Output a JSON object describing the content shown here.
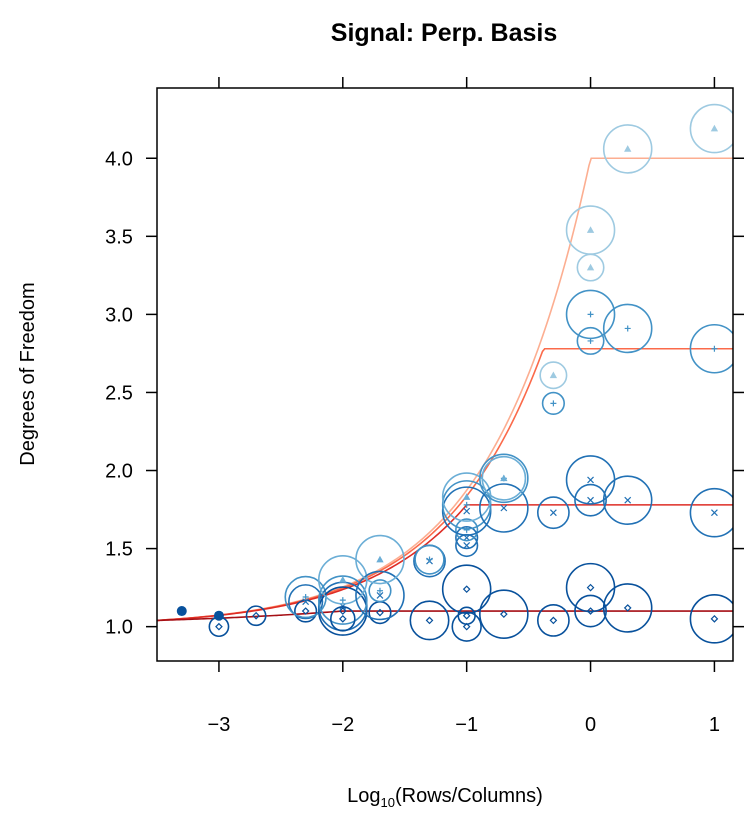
{
  "chart_data": {
    "type": "scatter",
    "title": "Signal: Perp. Basis",
    "xlabel_prefix": "Log",
    "xlabel_subscript": "10",
    "xlabel_suffix": "(Rows/Columns)",
    "ylabel": "Degrees of Freedom",
    "xlim": [
      -3.5,
      1.15
    ],
    "ylim": [
      0.78,
      4.45
    ],
    "x_ticks": [
      -3,
      -2,
      -1,
      0,
      1
    ],
    "x_tick_labels": [
      "−3",
      "−2",
      "−1",
      "0",
      "1"
    ],
    "y_ticks": [
      1.0,
      1.5,
      2.0,
      2.5,
      3.0,
      3.5,
      4.0
    ],
    "y_tick_labels": [
      "1.0",
      "1.5",
      "2.0",
      "2.5",
      "3.0",
      "3.5",
      "4.0"
    ],
    "grid": false,
    "legend": "none",
    "curves": [
      {
        "color": "#fcae91",
        "level": 4.0,
        "knee": 0.0
      },
      {
        "color": "#fb6a4a",
        "level": 2.78,
        "knee": -0.38
      },
      {
        "color": "#de2d26",
        "level": 1.78,
        "knee": -1.0
      },
      {
        "color": "#a50f15",
        "level": 1.1,
        "knee": -2.0
      }
    ],
    "points": [
      {
        "x": -3.3,
        "y": 1.1,
        "symbol": "dot",
        "size": 0,
        "color": "#08519c"
      },
      {
        "x": -3.0,
        "y": 1.07,
        "symbol": "dot",
        "size": 0,
        "color": "#08519c"
      },
      {
        "x": -3.0,
        "y": 1.0,
        "symbol": "diamond",
        "size": 0.4,
        "color": "#08519c"
      },
      {
        "x": -2.7,
        "y": 1.07,
        "symbol": "diamond",
        "size": 0.4,
        "color": "#08519c"
      },
      {
        "x": -2.3,
        "y": 1.1,
        "symbol": "diamond",
        "size": 0.45,
        "color": "#08519c"
      },
      {
        "x": -2.3,
        "y": 1.16,
        "symbol": "x",
        "size": 0.7,
        "color": "#2171b5"
      },
      {
        "x": -2.3,
        "y": 1.19,
        "symbol": "plus",
        "size": 0.85,
        "color": "#4292c6"
      },
      {
        "x": -2.0,
        "y": 1.1,
        "symbol": "diamond",
        "size": 1.0,
        "color": "#08519c"
      },
      {
        "x": -2.0,
        "y": 1.13,
        "symbol": "x",
        "size": 1.0,
        "color": "#2171b5"
      },
      {
        "x": -2.0,
        "y": 1.17,
        "symbol": "plus",
        "size": 1.0,
        "color": "#4292c6"
      },
      {
        "x": -2.0,
        "y": 1.3,
        "symbol": "triangle",
        "size": 1.0,
        "color": "#6baed6"
      },
      {
        "x": -2.0,
        "y": 1.05,
        "symbol": "diamond",
        "size": 0.5,
        "color": "#08519c"
      },
      {
        "x": -1.7,
        "y": 1.09,
        "symbol": "diamond",
        "size": 0.45,
        "color": "#08519c"
      },
      {
        "x": -1.7,
        "y": 1.2,
        "symbol": "x",
        "size": 1.0,
        "color": "#2171b5"
      },
      {
        "x": -1.7,
        "y": 1.23,
        "symbol": "plus",
        "size": 0.45,
        "color": "#4292c6"
      },
      {
        "x": -1.7,
        "y": 1.43,
        "symbol": "triangle",
        "size": 1.0,
        "color": "#6baed6"
      },
      {
        "x": -1.3,
        "y": 1.04,
        "symbol": "diamond",
        "size": 0.8,
        "color": "#08519c"
      },
      {
        "x": -1.3,
        "y": 1.42,
        "symbol": "x",
        "size": 0.65,
        "color": "#2171b5"
      },
      {
        "x": -1.3,
        "y": 1.43,
        "symbol": "plus",
        "size": 0.6,
        "color": "#4292c6"
      },
      {
        "x": -1.0,
        "y": 1.0,
        "symbol": "diamond",
        "size": 0.6,
        "color": "#08519c"
      },
      {
        "x": -1.0,
        "y": 1.07,
        "symbol": "diamond",
        "size": 0.35,
        "color": "#08519c"
      },
      {
        "x": -1.0,
        "y": 1.24,
        "symbol": "diamond",
        "size": 1.0,
        "color": "#08519c"
      },
      {
        "x": -1.0,
        "y": 1.52,
        "symbol": "x",
        "size": 0.45,
        "color": "#2171b5"
      },
      {
        "x": -1.0,
        "y": 1.57,
        "symbol": "x",
        "size": 0.45,
        "color": "#2171b5"
      },
      {
        "x": -1.0,
        "y": 1.62,
        "symbol": "plus",
        "size": 0.45,
        "color": "#4292c6"
      },
      {
        "x": -1.0,
        "y": 1.74,
        "symbol": "x",
        "size": 1.0,
        "color": "#2171b5"
      },
      {
        "x": -1.0,
        "y": 1.78,
        "symbol": "plus",
        "size": 1.0,
        "color": "#4292c6"
      },
      {
        "x": -1.0,
        "y": 1.83,
        "symbol": "triangle",
        "size": 1.0,
        "color": "#6baed6"
      },
      {
        "x": -0.7,
        "y": 1.08,
        "symbol": "diamond",
        "size": 1.0,
        "color": "#08519c"
      },
      {
        "x": -0.7,
        "y": 1.76,
        "symbol": "x",
        "size": 1.0,
        "color": "#2171b5"
      },
      {
        "x": -0.7,
        "y": 1.95,
        "symbol": "plus",
        "size": 1.0,
        "color": "#4292c6"
      },
      {
        "x": -0.7,
        "y": 1.95,
        "symbol": "triangle",
        "size": 0.9,
        "color": "#6baed6"
      },
      {
        "x": -0.3,
        "y": 1.04,
        "symbol": "diamond",
        "size": 0.65,
        "color": "#08519c"
      },
      {
        "x": -0.3,
        "y": 1.73,
        "symbol": "x",
        "size": 0.65,
        "color": "#2171b5"
      },
      {
        "x": -0.3,
        "y": 2.43,
        "symbol": "plus",
        "size": 0.45,
        "color": "#4292c6"
      },
      {
        "x": -0.3,
        "y": 2.61,
        "symbol": "triangle",
        "size": 0.55,
        "color": "#9ecae1"
      },
      {
        "x": 0.0,
        "y": 1.1,
        "symbol": "diamond",
        "size": 0.65,
        "color": "#08519c"
      },
      {
        "x": 0.0,
        "y": 1.25,
        "symbol": "diamond",
        "size": 1.0,
        "color": "#08519c"
      },
      {
        "x": 0.0,
        "y": 1.81,
        "symbol": "x",
        "size": 0.65,
        "color": "#2171b5"
      },
      {
        "x": 0.0,
        "y": 1.94,
        "symbol": "x",
        "size": 1.0,
        "color": "#2171b5"
      },
      {
        "x": 0.0,
        "y": 2.83,
        "symbol": "plus",
        "size": 0.55,
        "color": "#4292c6"
      },
      {
        "x": 0.0,
        "y": 3.0,
        "symbol": "plus",
        "size": 1.0,
        "color": "#4292c6"
      },
      {
        "x": 0.0,
        "y": 3.3,
        "symbol": "triangle",
        "size": 0.55,
        "color": "#9ecae1"
      },
      {
        "x": 0.0,
        "y": 3.54,
        "symbol": "triangle",
        "size": 1.0,
        "color": "#9ecae1"
      },
      {
        "x": 0.3,
        "y": 1.12,
        "symbol": "diamond",
        "size": 1.0,
        "color": "#08519c"
      },
      {
        "x": 0.3,
        "y": 1.81,
        "symbol": "x",
        "size": 1.0,
        "color": "#2171b5"
      },
      {
        "x": 0.3,
        "y": 2.91,
        "symbol": "plus",
        "size": 1.0,
        "color": "#4292c6"
      },
      {
        "x": 0.3,
        "y": 4.06,
        "symbol": "triangle",
        "size": 1.0,
        "color": "#9ecae1"
      },
      {
        "x": 1.0,
        "y": 1.05,
        "symbol": "diamond",
        "size": 1.0,
        "color": "#08519c"
      },
      {
        "x": 1.0,
        "y": 1.73,
        "symbol": "x",
        "size": 1.0,
        "color": "#2171b5"
      },
      {
        "x": 1.0,
        "y": 2.78,
        "symbol": "plus",
        "size": 1.0,
        "color": "#4292c6"
      },
      {
        "x": 1.0,
        "y": 4.19,
        "symbol": "triangle",
        "size": 1.0,
        "color": "#9ecae1"
      }
    ]
  }
}
